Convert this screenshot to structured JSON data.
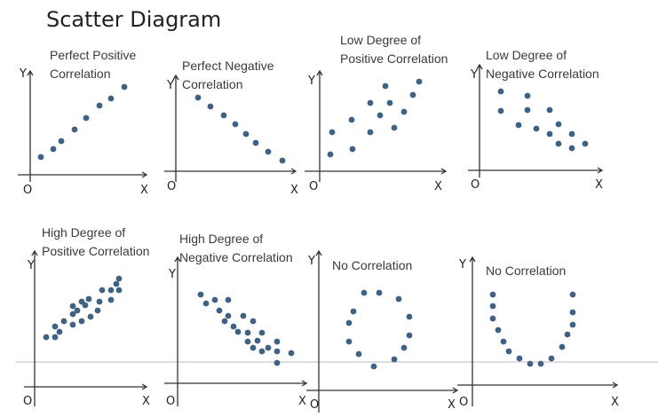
{
  "title": "Scatter Diagram",
  "panels": [
    {
      "title_lines": [
        "Perfect Positive",
        "Correlation"
      ],
      "y_label": "Y",
      "x_label": "X",
      "origin_label": "O"
    },
    {
      "title_lines": [
        "Perfect Negative",
        "Correlation"
      ],
      "y_label": "Y",
      "x_label": "X",
      "origin_label": "O"
    },
    {
      "title_lines": [
        "Low Degree of",
        "Positive Correlation"
      ],
      "y_label": "Y",
      "x_label": "X",
      "origin_label": "O"
    },
    {
      "title_lines": [
        "Low Degree of",
        "Negative Correlation"
      ],
      "y_label": "Y",
      "x_label": "X",
      "origin_label": "O"
    },
    {
      "title_lines": [
        "High Degree of",
        "Positive Correlation"
      ],
      "y_label": "Y",
      "x_label": "X",
      "origin_label": "O"
    },
    {
      "title_lines": [
        "High Degree of",
        "Negative Correlation"
      ],
      "y_label": "Y",
      "x_label": "X",
      "origin_label": "O"
    },
    {
      "title_lines": [
        "No Correlation"
      ],
      "y_label": "Y",
      "x_label": "X",
      "origin_label": "O"
    },
    {
      "title_lines": [
        "No Correlation"
      ],
      "y_label": "Y",
      "x_label": "X",
      "origin_label": "O"
    }
  ],
  "colors": {
    "dot": "#3f6184",
    "axis": "#333333",
    "text": "#3a3a3a"
  }
}
